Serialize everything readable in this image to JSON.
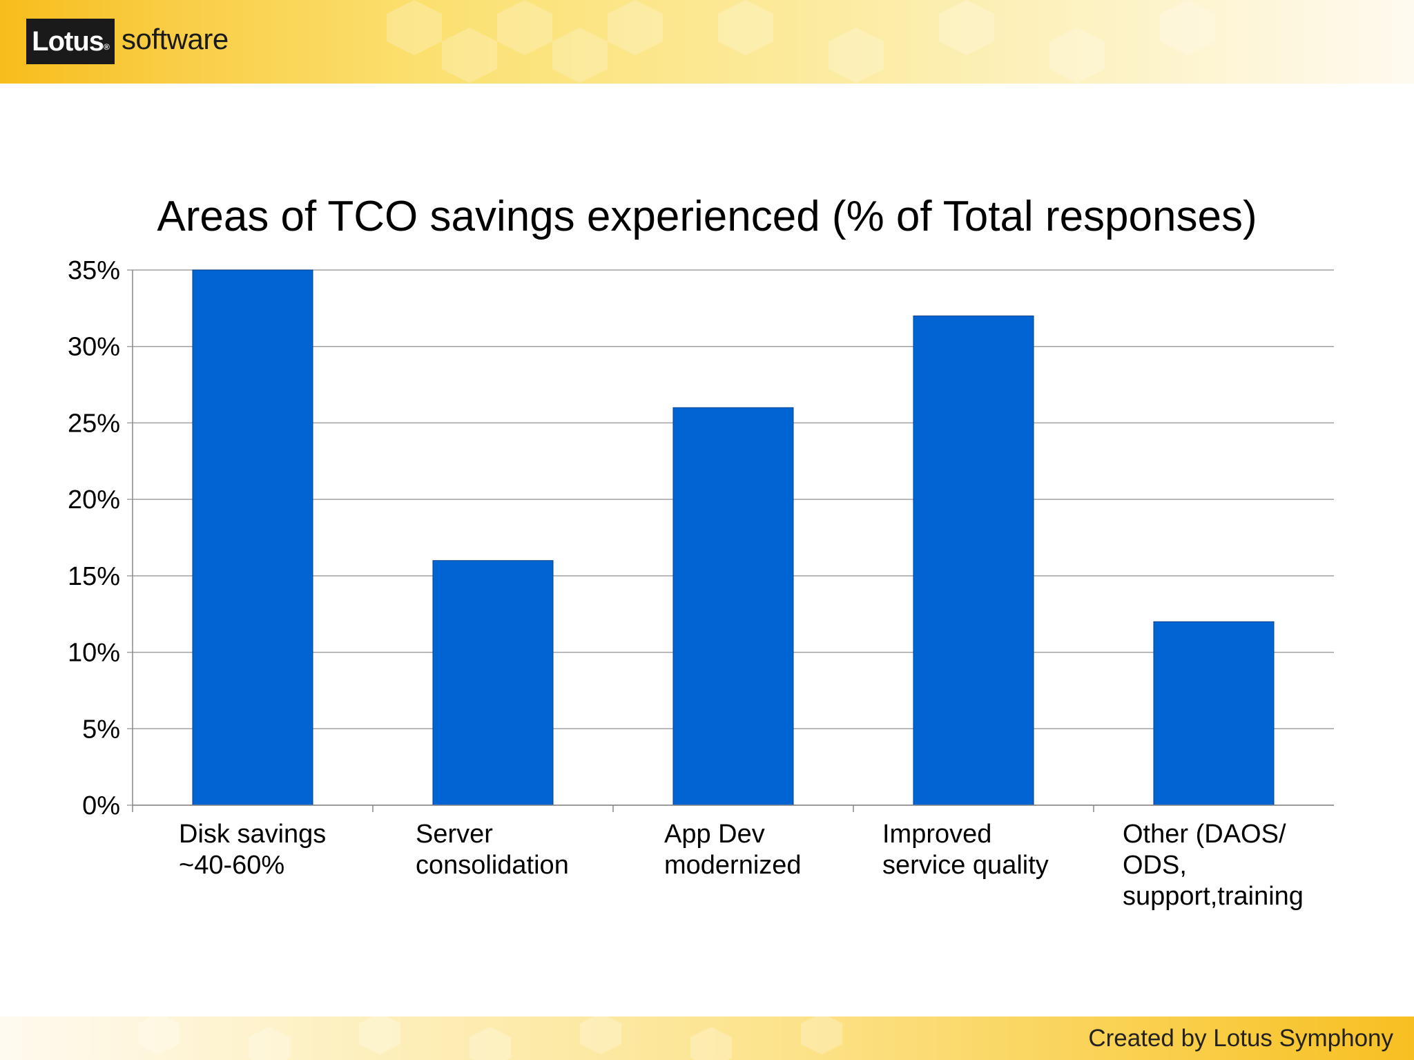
{
  "brand": {
    "logo": "Lotus",
    "logo_mark": "®",
    "product": "software"
  },
  "footer": {
    "credit": "Created by Lotus Symphony"
  },
  "colors": {
    "bar": "#0064d2",
    "grid": "#a0a0a0",
    "band_gold": "#f7bd1b"
  },
  "chart_data": {
    "type": "bar",
    "title": "Areas of TCO savings experienced (% of Total responses)",
    "categories": [
      [
        "Disk savings",
        "~40-60%"
      ],
      [
        "Server",
        "consolidation"
      ],
      [
        "App Dev",
        "modernized"
      ],
      [
        "Improved",
        "service quality"
      ],
      [
        "Other (DAOS/",
        "ODS,",
        "support,training"
      ]
    ],
    "values": [
      35,
      16,
      26,
      32,
      12
    ],
    "ylim": [
      0,
      35
    ],
    "yticks": [
      0,
      5,
      10,
      15,
      20,
      25,
      30,
      35
    ],
    "ytick_format": "%",
    "xlabel": "",
    "ylabel": "",
    "grid": true
  }
}
